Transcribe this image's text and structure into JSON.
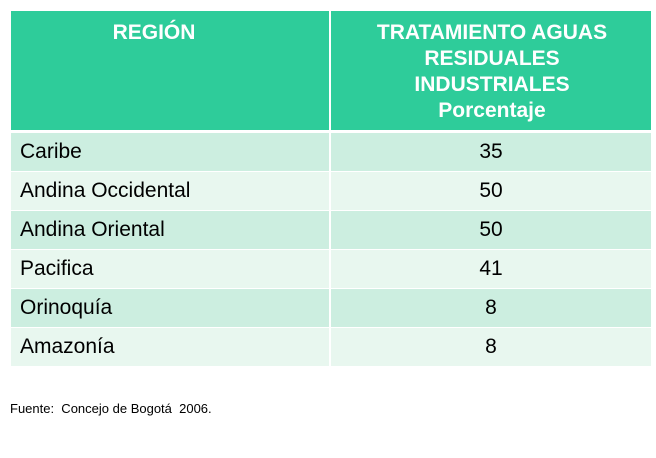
{
  "table": {
    "header": {
      "region": "REGIÓN",
      "value_lines": [
        "TRATAMIENTO AGUAS",
        "RESIDUALES",
        "INDUSTRIALES",
        "Porcentaje"
      ]
    },
    "rows": [
      {
        "region": "Caribe",
        "value": "35"
      },
      {
        "region": "Andina Occidental",
        "value": "50"
      },
      {
        "region": "Andina Oriental",
        "value": "50"
      },
      {
        "region": "Pacifica",
        "value": "41"
      },
      {
        "region": "Orinoquía",
        "value": "8"
      },
      {
        "region": "Amazonía",
        "value": "8"
      }
    ]
  },
  "footer": {
    "source": "Fuente:  Concejo de Bogotá  2006."
  },
  "colors": {
    "header_bg": "#2ecc9a",
    "row_odd_bg": "#cceee0",
    "row_even_bg": "#e8f7ef"
  }
}
